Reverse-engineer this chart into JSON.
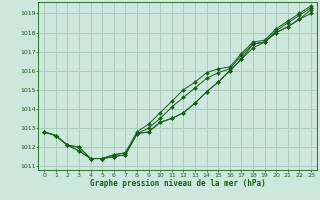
{
  "bg_color": "#cce8dc",
  "grid_color": "#aaccbb",
  "line_color": "#1a5c1a",
  "text_color": "#1a5c1a",
  "xlabel": "Graphe pression niveau de la mer (hPa)",
  "xlim": [
    -0.5,
    23.5
  ],
  "ylim": [
    1010.8,
    1019.6
  ],
  "yticks": [
    1011,
    1012,
    1013,
    1014,
    1015,
    1016,
    1017,
    1018,
    1019
  ],
  "xticks": [
    0,
    1,
    2,
    3,
    4,
    5,
    6,
    7,
    8,
    9,
    10,
    11,
    12,
    13,
    14,
    15,
    16,
    17,
    18,
    19,
    20,
    21,
    22,
    23
  ],
  "series": [
    [
      1012.8,
      1012.6,
      1012.1,
      1011.8,
      1011.4,
      1011.4,
      1011.5,
      1011.6,
      1012.7,
      1012.8,
      1013.3,
      1013.5,
      1013.8,
      1014.3,
      1014.9,
      1015.4,
      1016.0,
      1016.6,
      1017.2,
      1017.5,
      1018.0,
      1018.3,
      1018.7,
      1019.0
    ],
    [
      1012.8,
      1012.6,
      1012.1,
      1011.8,
      1011.4,
      1011.4,
      1011.5,
      1011.6,
      1012.7,
      1012.8,
      1013.3,
      1013.5,
      1013.8,
      1014.3,
      1014.9,
      1015.4,
      1016.0,
      1016.6,
      1017.4,
      1017.5,
      1018.0,
      1018.3,
      1018.7,
      1019.2
    ],
    [
      1012.8,
      1012.6,
      1012.1,
      1012.0,
      1011.4,
      1011.4,
      1011.6,
      1011.7,
      1012.7,
      1013.0,
      1013.5,
      1014.1,
      1014.6,
      1015.1,
      1015.6,
      1015.9,
      1016.1,
      1016.8,
      1017.4,
      1017.5,
      1018.1,
      1018.5,
      1018.9,
      1019.3
    ],
    [
      1012.8,
      1012.6,
      1012.1,
      1012.0,
      1011.4,
      1011.4,
      1011.6,
      1011.7,
      1012.8,
      1013.2,
      1013.8,
      1014.4,
      1015.0,
      1015.4,
      1015.9,
      1016.1,
      1016.2,
      1016.9,
      1017.5,
      1017.6,
      1018.2,
      1018.6,
      1019.0,
      1019.4
    ]
  ]
}
